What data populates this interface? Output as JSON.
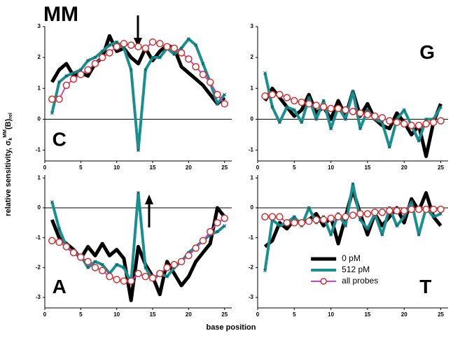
{
  "header": {
    "title": "MM",
    "ylabel": "relative sensitivity, σ",
    "ylabel_sub": "k",
    "ylabel_sup": "MM",
    "ylabel_end": "(B)",
    "ylabel_end_sub": "rel",
    "xlabel": "base position"
  },
  "chart_data": [
    {
      "type": "line",
      "panel_label": "C",
      "x": [
        1,
        2,
        3,
        4,
        5,
        6,
        7,
        8,
        9,
        10,
        11,
        12,
        13,
        14,
        15,
        16,
        17,
        18,
        19,
        20,
        21,
        22,
        23,
        24,
        25
      ],
      "xlim": [
        0,
        26
      ],
      "xticks": [
        0,
        5,
        10,
        15,
        20,
        25
      ],
      "ylim": [
        -1.35,
        3
      ],
      "yticks": [
        -1,
        0,
        1,
        2,
        3
      ],
      "hline": 0,
      "series": [
        {
          "name": "0 pM",
          "color": "#000000",
          "values": [
            1.2,
            1.6,
            1.8,
            1.4,
            1.5,
            1.4,
            1.8,
            2.0,
            2.7,
            2.2,
            2.3,
            2.0,
            1.8,
            2.3,
            1.9,
            2.2,
            2.4,
            2.3,
            1.7,
            1.5,
            1.3,
            1.1,
            0.8,
            0.5,
            0.7
          ]
        },
        {
          "name": "512 pM",
          "color": "#1a8f8f",
          "marker": "x",
          "values": [
            0.2,
            1.2,
            1.4,
            1.5,
            1.6,
            1.9,
            2.0,
            2.2,
            2.4,
            2.5,
            2.3,
            1.6,
            -1.0,
            1.6,
            2.0,
            2.0,
            2.3,
            2.1,
            2.3,
            2.6,
            2.4,
            1.8,
            1.2,
            0.5,
            0.8
          ]
        },
        {
          "name": "all probes",
          "color": "#cc44cc",
          "marker": "circle",
          "marker_color": "#d03030",
          "values": [
            0.65,
            0.65,
            1.1,
            1.3,
            1.45,
            1.6,
            1.8,
            2.0,
            2.15,
            2.35,
            2.45,
            2.4,
            2.35,
            2.3,
            2.5,
            2.45,
            2.35,
            2.3,
            2.15,
            1.95,
            1.7,
            1.45,
            1.2,
            0.8,
            0.5
          ]
        }
      ]
    },
    {
      "type": "line",
      "panel_label": "G",
      "x": [
        1,
        2,
        3,
        4,
        5,
        6,
        7,
        8,
        9,
        10,
        11,
        12,
        13,
        14,
        15,
        16,
        17,
        18,
        19,
        20,
        21,
        22,
        23,
        24,
        25
      ],
      "xlim": [
        0,
        26
      ],
      "xticks": [
        0,
        5,
        10,
        15,
        20,
        25
      ],
      "ylim": [
        -1.35,
        3
      ],
      "yticks": [
        -1,
        0,
        1,
        2,
        3
      ],
      "hline": 0,
      "series": [
        {
          "name": "0 pM",
          "color": "#000000",
          "values": [
            0.6,
            1.0,
            0.7,
            0.4,
            0.1,
            0.3,
            0.8,
            0.2,
            0.4,
            0.0,
            0.6,
            0.1,
            0.9,
            0.1,
            0.5,
            0.0,
            -0.2,
            -0.3,
            0.2,
            -0.1,
            -0.5,
            -0.2,
            -1.2,
            -0.1,
            0.5
          ]
        },
        {
          "name": "512 pM",
          "color": "#1a8f8f",
          "marker": "x",
          "values": [
            1.5,
            0.4,
            -0.1,
            0.4,
            0.3,
            -0.1,
            0.7,
            0.0,
            0.6,
            -0.3,
            0.4,
            0.0,
            0.9,
            -0.3,
            0.3,
            0.0,
            -0.1,
            -0.9,
            0.0,
            0.3,
            -0.2,
            -0.7,
            0.0,
            0.0,
            0.4
          ]
        },
        {
          "name": "all probes",
          "color": "#cc44cc",
          "marker": "circle",
          "marker_color": "#d03030",
          "values": [
            0.75,
            0.8,
            0.8,
            0.7,
            0.6,
            0.55,
            0.5,
            0.45,
            0.4,
            0.35,
            0.35,
            0.3,
            0.25,
            0.2,
            0.15,
            0.1,
            0.05,
            -0.05,
            -0.1,
            -0.15,
            -0.2,
            -0.2,
            -0.15,
            -0.1,
            -0.05
          ]
        }
      ]
    },
    {
      "type": "line",
      "panel_label": "A",
      "x": [
        1,
        2,
        3,
        4,
        5,
        6,
        7,
        8,
        9,
        10,
        11,
        12,
        13,
        14,
        15,
        16,
        17,
        18,
        19,
        20,
        21,
        22,
        23,
        24,
        25
      ],
      "xlim": [
        0,
        26
      ],
      "xticks": [
        0,
        5,
        10,
        15,
        20,
        25
      ],
      "ylim": [
        -3.35,
        1.1
      ],
      "yticks": [
        -3,
        -2,
        -1,
        0,
        1
      ],
      "hline": 0,
      "series": [
        {
          "name": "0 pM",
          "color": "#000000",
          "values": [
            -0.4,
            -1.0,
            -1.2,
            -1.4,
            -1.7,
            -1.3,
            -1.6,
            -1.2,
            -1.6,
            -1.4,
            -1.7,
            -3.1,
            -1.3,
            -1.9,
            -2.3,
            -2.9,
            -1.8,
            -2.2,
            -2.6,
            -2.3,
            -1.8,
            -1.5,
            -1.2,
            0.0,
            -0.3
          ]
        },
        {
          "name": "512 pM",
          "color": "#1a8f8f",
          "marker": "x",
          "values": [
            0.2,
            -0.7,
            -1.3,
            -1.5,
            -1.6,
            -2.0,
            -1.8,
            -1.9,
            -2.2,
            -1.9,
            -2.0,
            -2.5,
            0.5,
            -2.0,
            -2.4,
            -2.2,
            -2.3,
            -2.0,
            -1.8,
            -1.5,
            -1.3,
            -1.1,
            -0.9,
            -0.8,
            -0.6
          ]
        },
        {
          "name": "all probes",
          "color": "#cc44cc",
          "marker": "circle",
          "marker_color": "#d03030",
          "values": [
            -1.1,
            -1.15,
            -1.3,
            -1.5,
            -1.65,
            -1.8,
            -2.0,
            -2.1,
            -2.3,
            -2.4,
            -2.45,
            -2.45,
            -2.2,
            -2.3,
            -2.35,
            -2.2,
            -2.0,
            -1.9,
            -1.8,
            -1.6,
            -1.35,
            -1.1,
            -0.8,
            -0.5,
            -0.35
          ]
        }
      ]
    },
    {
      "type": "line",
      "panel_label": "T",
      "legend": "lower-left",
      "x": [
        1,
        2,
        3,
        4,
        5,
        6,
        7,
        8,
        9,
        10,
        11,
        12,
        13,
        14,
        15,
        16,
        17,
        18,
        19,
        20,
        21,
        22,
        23,
        24,
        25
      ],
      "xlim": [
        0,
        26
      ],
      "xticks": [
        0,
        5,
        10,
        15,
        20,
        25
      ],
      "ylim": [
        -3.35,
        1.1
      ],
      "yticks": [
        -3,
        -2,
        -1,
        0,
        1
      ],
      "hline": 0,
      "series": [
        {
          "name": "0 pM",
          "color": "#000000",
          "values": [
            -1.3,
            -1.1,
            -0.5,
            -0.7,
            -0.4,
            -0.5,
            -0.4,
            -0.2,
            -0.6,
            -0.3,
            -1.2,
            -0.3,
            0.6,
            -0.2,
            -0.9,
            -0.2,
            -0.6,
            -0.3,
            0.0,
            -0.5,
            0.3,
            -0.1,
            0.5,
            -0.3,
            -0.6
          ]
        },
        {
          "name": "512 pM",
          "color": "#1a8f8f",
          "marker": "x",
          "values": [
            -2.1,
            -0.4,
            -0.6,
            -0.5,
            -0.3,
            -0.6,
            0.0,
            -0.5,
            -0.3,
            -0.9,
            -0.2,
            -0.6,
            0.8,
            -0.4,
            -0.7,
            -0.2,
            -0.9,
            0.0,
            -0.6,
            -0.3,
            0.2,
            -0.9,
            0.0,
            -0.3,
            -0.2
          ]
        },
        {
          "name": "all probes",
          "color": "#cc44cc",
          "marker": "circle",
          "marker_color": "#d03030",
          "values": [
            -0.3,
            -0.3,
            -0.3,
            -0.5,
            -0.5,
            -0.5,
            -0.45,
            -0.4,
            -0.4,
            -0.35,
            -0.3,
            -0.3,
            -0.25,
            -0.2,
            -0.2,
            -0.15,
            -0.15,
            -0.1,
            -0.1,
            -0.1,
            -0.05,
            -0.05,
            -0.05,
            -0.05,
            -0.05
          ]
        }
      ]
    }
  ]
}
